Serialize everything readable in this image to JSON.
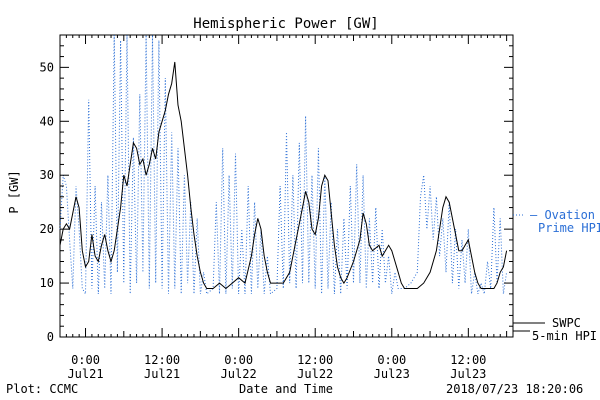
{
  "chart_data": {
    "type": "line",
    "title": "Hemispheric Power [GW]",
    "xlabel": "Date and Time",
    "ylabel": "P [GW]",
    "x_axis": {
      "unit": "hours since 2018-07-21 00:00 UTC",
      "range": [
        -4,
        67
      ],
      "ticks": [
        {
          "x": 0,
          "line1": "0:00",
          "line2": "Jul21"
        },
        {
          "x": 12,
          "line1": "12:00",
          "line2": "Jul21"
        },
        {
          "x": 24,
          "line1": "0:00",
          "line2": "Jul22"
        },
        {
          "x": 36,
          "line1": "12:00",
          "line2": "Jul22"
        },
        {
          "x": 48,
          "line1": "0:00",
          "line2": "Jul23"
        },
        {
          "x": 60,
          "line1": "12:00",
          "line2": "Jul23"
        }
      ]
    },
    "y_axis": {
      "range": [
        0,
        56
      ],
      "ticks": [
        0,
        10,
        20,
        30,
        40,
        50
      ]
    },
    "legend": {
      "position": "right",
      "ovation_line1": "— Ovation",
      "ovation_line2": "Prime HPI",
      "swpc_line1": "SWPC",
      "swpc_line2": "5-min HPI"
    },
    "series": [
      {
        "name": "SWPC 5-min HPI",
        "style": "solid",
        "color": "#000000",
        "points": [
          [
            -4,
            17
          ],
          [
            -3.5,
            20
          ],
          [
            -3,
            21
          ],
          [
            -2.5,
            20
          ],
          [
            -2,
            23
          ],
          [
            -1.5,
            26
          ],
          [
            -1,
            24
          ],
          [
            -0.5,
            16
          ],
          [
            0,
            13
          ],
          [
            0.5,
            14
          ],
          [
            1,
            19
          ],
          [
            1.5,
            15
          ],
          [
            2,
            14
          ],
          [
            2.5,
            17
          ],
          [
            3,
            19
          ],
          [
            3.5,
            16
          ],
          [
            4,
            14
          ],
          [
            4.5,
            16
          ],
          [
            5,
            20
          ],
          [
            5.5,
            24
          ],
          [
            6,
            30
          ],
          [
            6.5,
            28
          ],
          [
            7,
            32
          ],
          [
            7.5,
            36
          ],
          [
            8,
            35
          ],
          [
            8.5,
            32
          ],
          [
            9,
            33
          ],
          [
            9.5,
            30
          ],
          [
            10,
            32
          ],
          [
            10.5,
            35
          ],
          [
            11,
            33
          ],
          [
            11.5,
            38
          ],
          [
            12,
            40
          ],
          [
            12.5,
            42
          ],
          [
            13,
            45
          ],
          [
            13.5,
            47
          ],
          [
            14,
            51
          ],
          [
            14.5,
            43
          ],
          [
            15,
            40
          ],
          [
            15.5,
            35
          ],
          [
            16,
            30
          ],
          [
            16.5,
            24
          ],
          [
            17,
            19
          ],
          [
            17.5,
            15
          ],
          [
            18,
            12
          ],
          [
            18.5,
            10
          ],
          [
            19,
            9
          ],
          [
            20,
            9
          ],
          [
            21,
            10
          ],
          [
            22,
            9
          ],
          [
            23,
            10
          ],
          [
            24,
            11
          ],
          [
            25,
            10
          ],
          [
            26,
            15
          ],
          [
            26.5,
            19
          ],
          [
            27,
            22
          ],
          [
            27.5,
            20
          ],
          [
            28,
            15
          ],
          [
            28.5,
            12
          ],
          [
            29,
            10
          ],
          [
            30,
            10
          ],
          [
            31,
            10
          ],
          [
            32,
            12
          ],
          [
            32.5,
            15
          ],
          [
            33,
            18
          ],
          [
            33.5,
            21
          ],
          [
            34,
            24
          ],
          [
            34.5,
            27
          ],
          [
            35,
            25
          ],
          [
            35.5,
            20
          ],
          [
            36,
            19
          ],
          [
            36.5,
            22
          ],
          [
            37,
            28
          ],
          [
            37.5,
            30
          ],
          [
            38,
            29
          ],
          [
            38.5,
            23
          ],
          [
            39,
            17
          ],
          [
            39.5,
            13
          ],
          [
            40,
            11
          ],
          [
            40.5,
            10
          ],
          [
            41,
            11
          ],
          [
            42,
            14
          ],
          [
            43,
            18
          ],
          [
            43.5,
            23
          ],
          [
            44,
            21
          ],
          [
            44.5,
            17
          ],
          [
            45,
            16
          ],
          [
            46,
            17
          ],
          [
            46.5,
            15
          ],
          [
            47,
            16
          ],
          [
            47.5,
            17
          ],
          [
            48,
            16
          ],
          [
            48.5,
            14
          ],
          [
            49,
            12
          ],
          [
            49.5,
            10
          ],
          [
            50,
            9
          ],
          [
            51,
            9
          ],
          [
            52,
            9
          ],
          [
            53,
            10
          ],
          [
            54,
            12
          ],
          [
            55,
            16
          ],
          [
            55.5,
            20
          ],
          [
            56,
            24
          ],
          [
            56.5,
            26
          ],
          [
            57,
            25
          ],
          [
            57.5,
            22
          ],
          [
            58,
            19
          ],
          [
            58.5,
            16
          ],
          [
            59,
            16
          ],
          [
            59.5,
            17
          ],
          [
            60,
            18
          ],
          [
            60.5,
            15
          ],
          [
            61,
            12
          ],
          [
            61.5,
            10
          ],
          [
            62,
            9
          ],
          [
            63,
            9
          ],
          [
            64,
            9
          ],
          [
            64.5,
            10
          ],
          [
            65,
            12
          ],
          [
            65.5,
            13
          ],
          [
            66,
            16
          ]
        ]
      },
      {
        "name": "Ovation Prime HPI",
        "style": "dotted",
        "color": "#2b6fd6",
        "points": [
          [
            -4,
            20
          ],
          [
            -3.5,
            30
          ],
          [
            -3,
            28
          ],
          [
            -2.5,
            18
          ],
          [
            -2,
            9
          ],
          [
            -1.5,
            28
          ],
          [
            -1,
            20
          ],
          [
            -0.5,
            9
          ],
          [
            0,
            8
          ],
          [
            0.5,
            44
          ],
          [
            1,
            9
          ],
          [
            1.5,
            28
          ],
          [
            2,
            8
          ],
          [
            2.5,
            25
          ],
          [
            3,
            9
          ],
          [
            3.5,
            30
          ],
          [
            4,
            8
          ],
          [
            4.5,
            56
          ],
          [
            5,
            12
          ],
          [
            5.5,
            55
          ],
          [
            6,
            10
          ],
          [
            6.5,
            56
          ],
          [
            7,
            8
          ],
          [
            7.5,
            37
          ],
          [
            8,
            10
          ],
          [
            8.5,
            45
          ],
          [
            9,
            12
          ],
          [
            9.5,
            56
          ],
          [
            10,
            9
          ],
          [
            10.5,
            56
          ],
          [
            11,
            10
          ],
          [
            11.5,
            55
          ],
          [
            12,
            9
          ],
          [
            12.5,
            48
          ],
          [
            13,
            8
          ],
          [
            13.5,
            38
          ],
          [
            14,
            9
          ],
          [
            14.5,
            35
          ],
          [
            15,
            8
          ],
          [
            15.5,
            30
          ],
          [
            16,
            10
          ],
          [
            16.5,
            25
          ],
          [
            17,
            8
          ],
          [
            17.5,
            22
          ],
          [
            18,
            8
          ],
          [
            18.5,
            12
          ],
          [
            19,
            8
          ],
          [
            20,
            9
          ],
          [
            20.5,
            25
          ],
          [
            21,
            8
          ],
          [
            21.5,
            35
          ],
          [
            22,
            8
          ],
          [
            22.5,
            30
          ],
          [
            23,
            9
          ],
          [
            23.5,
            34
          ],
          [
            24,
            8
          ],
          [
            24.5,
            20
          ],
          [
            25,
            8
          ],
          [
            25.5,
            28
          ],
          [
            26,
            8
          ],
          [
            26.5,
            25
          ],
          [
            27,
            9
          ],
          [
            27.5,
            20
          ],
          [
            28,
            8
          ],
          [
            28.5,
            15
          ],
          [
            29,
            8
          ],
          [
            30,
            9
          ],
          [
            30.5,
            28
          ],
          [
            31,
            9
          ],
          [
            31.5,
            38
          ],
          [
            32,
            10
          ],
          [
            32.5,
            30
          ],
          [
            33,
            9
          ],
          [
            33.5,
            36
          ],
          [
            34,
            10
          ],
          [
            34.5,
            41
          ],
          [
            35,
            10
          ],
          [
            35.5,
            30
          ],
          [
            36,
            9
          ],
          [
            36.5,
            35
          ],
          [
            37,
            8
          ],
          [
            37.5,
            30
          ],
          [
            38,
            9
          ],
          [
            38.5,
            25
          ],
          [
            39,
            8
          ],
          [
            39.5,
            20
          ],
          [
            40,
            8
          ],
          [
            40.5,
            22
          ],
          [
            41,
            9
          ],
          [
            41.5,
            28
          ],
          [
            42,
            10
          ],
          [
            42.5,
            32
          ],
          [
            43,
            10
          ],
          [
            43.5,
            30
          ],
          [
            44,
            9
          ],
          [
            44.5,
            22
          ],
          [
            45,
            10
          ],
          [
            45.5,
            24
          ],
          [
            46,
            9
          ],
          [
            46.5,
            20
          ],
          [
            47,
            10
          ],
          [
            47.5,
            15
          ],
          [
            48,
            8
          ],
          [
            48.5,
            12
          ],
          [
            49,
            9
          ],
          [
            50,
            9
          ],
          [
            51,
            10
          ],
          [
            52,
            12
          ],
          [
            52.5,
            26
          ],
          [
            53,
            30
          ],
          [
            53.5,
            20
          ],
          [
            54,
            28
          ],
          [
            54.5,
            18
          ],
          [
            55,
            26
          ],
          [
            55.5,
            15
          ],
          [
            56,
            22
          ],
          [
            56.5,
            12
          ],
          [
            57,
            25
          ],
          [
            57.5,
            10
          ],
          [
            58,
            20
          ],
          [
            58.5,
            9
          ],
          [
            59,
            18
          ],
          [
            59.5,
            10
          ],
          [
            60,
            20
          ],
          [
            60.5,
            8
          ],
          [
            61,
            12
          ],
          [
            61.5,
            8
          ],
          [
            62,
            10
          ],
          [
            62.5,
            8
          ],
          [
            63,
            14
          ],
          [
            63.5,
            9
          ],
          [
            64,
            24
          ],
          [
            64.5,
            10
          ],
          [
            65,
            22
          ],
          [
            65.5,
            8
          ],
          [
            66,
            12
          ]
        ]
      }
    ]
  },
  "footer": {
    "plot_credit": "Plot: CCMC",
    "timestamp": "2018/07/23 18:20:06"
  }
}
